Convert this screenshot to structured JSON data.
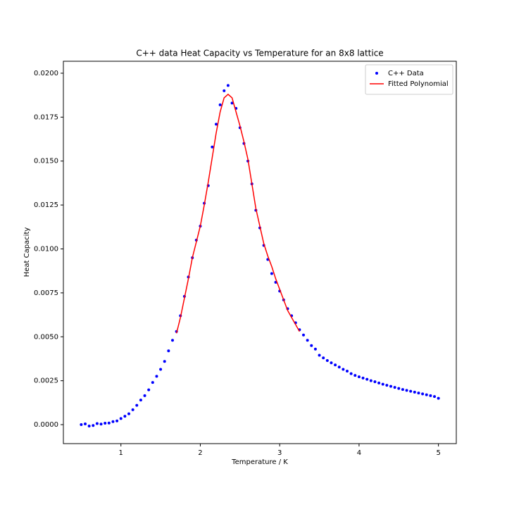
{
  "chart_data": {
    "type": "scatter",
    "title": "C++ data Heat Capacity vs Temperature for an 8x8 lattice",
    "x_label": "Temperature / K",
    "y_label": "Heat Capacity",
    "xlim": [
      0.275,
      5.225
    ],
    "ylim": [
      -0.00108,
      0.02068
    ],
    "xticks": [
      1,
      2,
      3,
      4,
      5
    ],
    "yticks": [
      {
        "value": 0,
        "label": "0.0000"
      },
      {
        "value": 0.0025,
        "label": "0.0025"
      },
      {
        "value": 0.005,
        "label": "0.0050"
      },
      {
        "value": 0.0075,
        "label": "0.0075"
      },
      {
        "value": 0.01,
        "label": "0.0100"
      },
      {
        "value": 0.0125,
        "label": "0.0125"
      },
      {
        "value": 0.015,
        "label": "0.0150"
      },
      {
        "value": 0.0175,
        "label": "0.0175"
      },
      {
        "value": 0.02,
        "label": "0.0200"
      }
    ],
    "legend": "upper right",
    "series": [
      {
        "name": "C++ Data",
        "color": "#0000ff",
        "type": "scatter",
        "x": [
          0.5,
          0.55,
          0.6,
          0.65,
          0.7,
          0.75,
          0.8,
          0.85,
          0.9,
          0.95,
          1.0,
          1.05,
          1.1,
          1.15,
          1.2,
          1.25,
          1.3,
          1.35,
          1.4,
          1.45,
          1.5,
          1.55,
          1.6,
          1.65,
          1.7,
          1.75,
          1.8,
          1.85,
          1.9,
          1.95,
          2.0,
          2.05,
          2.1,
          2.15,
          2.2,
          2.25,
          2.3,
          2.35,
          2.4,
          2.45,
          2.5,
          2.55,
          2.6,
          2.65,
          2.7,
          2.75,
          2.8,
          2.85,
          2.9,
          2.95,
          3.0,
          3.05,
          3.1,
          3.15,
          3.2,
          3.25,
          3.3,
          3.35,
          3.4,
          3.45,
          3.5,
          3.55,
          3.6,
          3.65,
          3.7,
          3.75,
          3.8,
          3.85,
          3.9,
          3.95,
          4.0,
          4.05,
          4.1,
          4.15,
          4.2,
          4.25,
          4.3,
          4.35,
          4.4,
          4.45,
          4.5,
          4.55,
          4.6,
          4.65,
          4.7,
          4.75,
          4.8,
          4.85,
          4.9,
          4.95,
          5.0
        ],
        "values": [
          0.0,
          4e-05,
          -8e-05,
          -5e-05,
          6e-05,
          3e-05,
          8e-05,
          9e-05,
          0.00017,
          0.00021,
          0.00035,
          0.00048,
          0.00062,
          0.00085,
          0.0011,
          0.0014,
          0.00165,
          0.00198,
          0.0024,
          0.00275,
          0.00315,
          0.0036,
          0.0042,
          0.0048,
          0.0053,
          0.0062,
          0.0073,
          0.0084,
          0.0095,
          0.0105,
          0.0113,
          0.0126,
          0.0136,
          0.0158,
          0.0171,
          0.0182,
          0.019,
          0.0193,
          0.0183,
          0.018,
          0.0169,
          0.016,
          0.015,
          0.0137,
          0.0122,
          0.0112,
          0.0102,
          0.0094,
          0.0086,
          0.0081,
          0.0076,
          0.0071,
          0.0066,
          0.0062,
          0.0058,
          0.0054,
          0.0051,
          0.0048,
          0.0045,
          0.0043,
          0.00395,
          0.0038,
          0.00365,
          0.00352,
          0.0034,
          0.00328,
          0.00315,
          0.00305,
          0.0029,
          0.0028,
          0.00272,
          0.00265,
          0.00258,
          0.0025,
          0.00244,
          0.00237,
          0.0023,
          0.00224,
          0.00218,
          0.00212,
          0.00206,
          0.002,
          0.00195,
          0.0019,
          0.00185,
          0.0018,
          0.00175,
          0.0017,
          0.00165,
          0.0016,
          0.0015
        ]
      },
      {
        "name": "Fitted Polynomial",
        "color": "#ff0000",
        "type": "line",
        "x": [
          1.7,
          1.75,
          1.8,
          1.85,
          1.9,
          1.95,
          2.0,
          2.05,
          2.1,
          2.15,
          2.2,
          2.25,
          2.3,
          2.35,
          2.4,
          2.45,
          2.5,
          2.55,
          2.6,
          2.65,
          2.7,
          2.75,
          2.8,
          2.85,
          2.9,
          2.95,
          3.0,
          3.05,
          3.1,
          3.15,
          3.2,
          3.25
        ],
        "values": [
          0.0052,
          0.0061,
          0.0072,
          0.0083,
          0.0095,
          0.0104,
          0.0113,
          0.0125,
          0.0138,
          0.0152,
          0.0166,
          0.0178,
          0.0186,
          0.0188,
          0.0186,
          0.0178,
          0.017,
          0.0161,
          0.0151,
          0.0137,
          0.0123,
          0.0113,
          0.0103,
          0.0096,
          0.009,
          0.0083,
          0.0077,
          0.0071,
          0.0065,
          0.0061,
          0.0057,
          0.0053
        ]
      }
    ]
  }
}
